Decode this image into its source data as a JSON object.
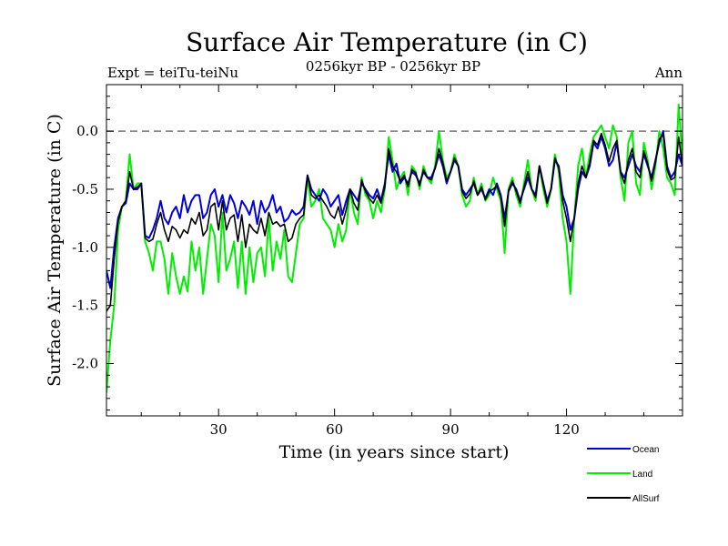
{
  "chart_data": {
    "type": "line",
    "title": "Surface Air Temperature (in C)",
    "subtitle": "0256kyr BP - 0256kyr BP",
    "left_label": "Expt = teiTu-teiNu",
    "right_label": "Ann",
    "xlabel": "Time (in years since start)",
    "ylabel": "Surface Air Temperature (in C)",
    "xlim": [
      1,
      150
    ],
    "ylim": [
      -2.45,
      0.4
    ],
    "x_ticks": [
      30,
      60,
      90,
      120
    ],
    "x_tick_labels": [
      "30",
      "60",
      "90",
      "120"
    ],
    "y_ticks": [
      0.0,
      -0.5,
      -1.0,
      -1.5,
      -2.0
    ],
    "y_tick_labels": [
      "0.0",
      "-0.5",
      "-1.0",
      "-1.5",
      "-2.0"
    ],
    "reference_line": 0.0,
    "legend_position": "bottom-right",
    "series": [
      {
        "name": "Ocean",
        "color": "#0000dd",
        "values": [
          -1.2,
          -1.35,
          -1.0,
          -0.75,
          -0.65,
          -0.62,
          -0.45,
          -0.5,
          -0.5,
          -0.45,
          -0.9,
          -0.92,
          -0.85,
          -0.75,
          -0.6,
          -0.75,
          -0.8,
          -0.7,
          -0.65,
          -0.75,
          -0.55,
          -0.7,
          -0.6,
          -0.55,
          -0.55,
          -0.75,
          -0.7,
          -0.55,
          -0.5,
          -0.65,
          -0.55,
          -0.7,
          -0.55,
          -0.62,
          -0.75,
          -0.6,
          -0.65,
          -0.72,
          -0.6,
          -0.8,
          -0.6,
          -0.7,
          -0.65,
          -0.55,
          -0.7,
          -0.65,
          -0.78,
          -0.75,
          -0.68,
          -0.72,
          -0.7,
          -0.65,
          -0.38,
          -0.5,
          -0.55,
          -0.6,
          -0.5,
          -0.55,
          -0.65,
          -0.6,
          -0.55,
          -0.72,
          -0.6,
          -0.5,
          -0.55,
          -0.6,
          -0.45,
          -0.5,
          -0.55,
          -0.58,
          -0.5,
          -0.6,
          -0.45,
          -0.2,
          -0.35,
          -0.28,
          -0.45,
          -0.4,
          -0.45,
          -0.35,
          -0.38,
          -0.45,
          -0.35,
          -0.4,
          -0.4,
          -0.32,
          -0.2,
          -0.3,
          -0.45,
          -0.35,
          -0.25,
          -0.3,
          -0.5,
          -0.55,
          -0.5,
          -0.45,
          -0.55,
          -0.5,
          -0.58,
          -0.5,
          -0.55,
          -0.45,
          -0.55,
          -0.75,
          -0.52,
          -0.45,
          -0.5,
          -0.6,
          -0.5,
          -0.4,
          -0.5,
          -0.55,
          -0.3,
          -0.45,
          -0.6,
          -0.5,
          -0.25,
          -0.3,
          -0.55,
          -0.65,
          -0.85,
          -0.75,
          -0.5,
          -0.35,
          -0.4,
          -0.3,
          -0.1,
          -0.15,
          -0.05,
          -0.15,
          -0.3,
          -0.25,
          -0.1,
          -0.35,
          -0.4,
          -0.3,
          -0.2,
          -0.3,
          -0.35,
          -0.2,
          -0.3,
          -0.4,
          -0.25,
          -0.1,
          0.0,
          -0.3,
          -0.4,
          -0.35,
          -0.2,
          -0.3
        ]
      },
      {
        "name": "Land",
        "color": "#00ee00",
        "values": [
          -2.25,
          -1.8,
          -1.5,
          -0.85,
          -0.65,
          -0.6,
          -0.2,
          -0.5,
          -0.45,
          -0.45,
          -0.95,
          -1.05,
          -1.2,
          -0.95,
          -0.95,
          -1.1,
          -1.4,
          -1.05,
          -1.25,
          -1.4,
          -1.25,
          -1.38,
          -0.95,
          -1.2,
          -1.0,
          -1.4,
          -1.1,
          -0.8,
          -0.9,
          -1.3,
          -0.7,
          -1.2,
          -1.1,
          -0.95,
          -1.35,
          -0.95,
          -1.4,
          -1.0,
          -1.3,
          -1.05,
          -1.0,
          -1.25,
          -0.75,
          -1.2,
          -0.95,
          -1.1,
          -0.85,
          -1.25,
          -1.3,
          -1.05,
          -0.8,
          -0.75,
          -0.4,
          -0.65,
          -0.6,
          -0.5,
          -0.75,
          -0.8,
          -0.85,
          -1.0,
          -0.8,
          -0.95,
          -0.85,
          -0.5,
          -0.7,
          -0.8,
          -0.4,
          -0.55,
          -0.6,
          -0.75,
          -0.6,
          -0.7,
          -0.5,
          -0.05,
          -0.25,
          -0.5,
          -0.4,
          -0.35,
          -0.55,
          -0.3,
          -0.35,
          -0.5,
          -0.3,
          -0.4,
          -0.45,
          -0.3,
          0.0,
          -0.25,
          -0.4,
          -0.35,
          -0.2,
          -0.3,
          -0.55,
          -0.65,
          -0.6,
          -0.4,
          -0.55,
          -0.45,
          -0.6,
          -0.55,
          -0.4,
          -0.5,
          -0.6,
          -1.05,
          -0.5,
          -0.4,
          -0.55,
          -0.65,
          -0.45,
          -0.25,
          -0.5,
          -0.6,
          -0.3,
          -0.5,
          -0.65,
          -0.5,
          -0.2,
          -0.35,
          -0.75,
          -0.95,
          -1.4,
          -0.75,
          -0.3,
          -0.15,
          -0.4,
          -0.2,
          -0.05,
          0.0,
          0.05,
          -0.05,
          -0.15,
          0.05,
          -0.05,
          -0.4,
          -0.6,
          -0.1,
          0.0,
          -0.45,
          -0.55,
          -0.1,
          -0.25,
          -0.5,
          -0.3,
          0.0,
          -0.15,
          -0.4,
          -0.45,
          -0.55,
          0.23,
          -0.25
        ]
      },
      {
        "name": "AllSurf",
        "color": "#000000",
        "values": [
          -1.55,
          -1.5,
          -1.1,
          -0.78,
          -0.65,
          -0.6,
          -0.35,
          -0.5,
          -0.48,
          -0.45,
          -0.92,
          -0.95,
          -0.93,
          -0.8,
          -0.7,
          -0.85,
          -0.95,
          -0.82,
          -0.85,
          -0.92,
          -0.85,
          -0.88,
          -0.75,
          -0.8,
          -0.7,
          -0.9,
          -0.85,
          -0.65,
          -0.62,
          -0.85,
          -0.6,
          -0.85,
          -0.75,
          -0.72,
          -0.95,
          -0.72,
          -1.0,
          -0.8,
          -0.85,
          -0.88,
          -0.75,
          -0.9,
          -0.7,
          -0.8,
          -0.78,
          -0.82,
          -0.8,
          -0.95,
          -0.92,
          -0.8,
          -0.75,
          -0.72,
          -0.38,
          -0.55,
          -0.58,
          -0.55,
          -0.6,
          -0.65,
          -0.72,
          -0.75,
          -0.65,
          -0.8,
          -0.68,
          -0.5,
          -0.62,
          -0.68,
          -0.42,
          -0.52,
          -0.58,
          -0.62,
          -0.55,
          -0.62,
          -0.48,
          -0.15,
          -0.3,
          -0.35,
          -0.43,
          -0.38,
          -0.48,
          -0.33,
          -0.36,
          -0.47,
          -0.33,
          -0.4,
          -0.42,
          -0.32,
          -0.15,
          -0.27,
          -0.43,
          -0.35,
          -0.23,
          -0.3,
          -0.52,
          -0.58,
          -0.54,
          -0.43,
          -0.55,
          -0.48,
          -0.59,
          -0.52,
          -0.5,
          -0.47,
          -0.57,
          -0.82,
          -0.51,
          -0.43,
          -0.52,
          -0.62,
          -0.48,
          -0.35,
          -0.5,
          -0.57,
          -0.3,
          -0.47,
          -0.62,
          -0.5,
          -0.23,
          -0.32,
          -0.6,
          -0.75,
          -0.95,
          -0.75,
          -0.45,
          -0.3,
          -0.4,
          -0.27,
          -0.08,
          -0.12,
          -0.02,
          -0.12,
          -0.26,
          -0.15,
          -0.08,
          -0.36,
          -0.45,
          -0.25,
          -0.15,
          -0.35,
          -0.4,
          -0.17,
          -0.28,
          -0.43,
          -0.27,
          -0.07,
          -0.03,
          -0.33,
          -0.42,
          -0.4,
          -0.05,
          -0.3
        ]
      }
    ]
  }
}
